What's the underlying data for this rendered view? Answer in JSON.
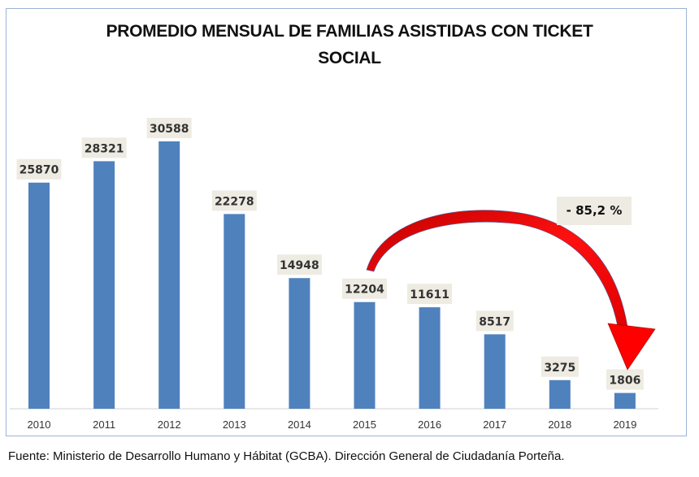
{
  "chart_data": {
    "type": "bar",
    "title": "PROMEDIO MENSUAL DE FAMILIAS ASISTIDAS CON TICKET SOCIAL",
    "categories": [
      "2010",
      "2011",
      "2012",
      "2013",
      "2014",
      "2015",
      "2016",
      "2017",
      "2018",
      "2019"
    ],
    "values": [
      25870,
      28321,
      30588,
      22278,
      14948,
      12204,
      11611,
      8517,
      3275,
      1806
    ],
    "data_labels": [
      "25870",
      "28321",
      "30588",
      "22278",
      "14948",
      "12204",
      "11611",
      "8517",
      "3275",
      "1806"
    ],
    "xlabel": "",
    "ylabel": "",
    "ylim": [
      0,
      30588
    ],
    "grid": false,
    "legend": "none",
    "bar_color": "#4f81bd",
    "annotation": {
      "text": "- 85,2 %",
      "arrow_from": "2015",
      "arrow_to": "2019",
      "arrow_color": "#e00000"
    }
  },
  "title_lines": [
    "PROMEDIO MENSUAL DE FAMILIAS ASISTIDAS CON TICKET",
    "SOCIAL"
  ],
  "source": "Fuente: Ministerio de Desarrollo Humano y Hábitat (GCBA). Dirección General de Ciudadanía Porteña."
}
